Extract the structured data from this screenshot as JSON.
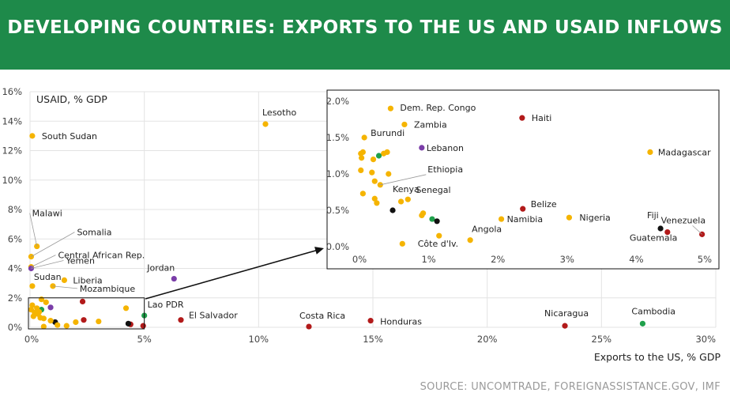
{
  "header": {
    "title": "DEVELOPING COUNTRIES: EXPORTS TO THE US AND USAID INFLOWS",
    "background": "#1e8a4a"
  },
  "source": "SOURCE: UNCOMTRADE, FOREIGNASSISTANCE.GOV, IMF",
  "colors": {
    "yellow": "#f5b400",
    "red": "#b21a1a",
    "green": "#1fa04b",
    "purple": "#7a3da8",
    "black": "#111111",
    "grid": "#e3e3e3",
    "axis_text": "#444444"
  },
  "chart_data": [
    {
      "type": "scatter",
      "xlabel": "Exports to the US, % GDP",
      "ylabel": "USAID, % GDP",
      "xlim": [
        0,
        30
      ],
      "ylim": [
        0,
        16
      ],
      "xticks": [
        0,
        5,
        10,
        15,
        20,
        25,
        30
      ],
      "yticks": [
        0,
        2,
        4,
        6,
        8,
        10,
        12,
        14,
        16
      ],
      "tick_format": "percent",
      "grid": true,
      "points": [
        {
          "label": "South Sudan",
          "x": 0.1,
          "y": 13.0,
          "color": "yellow"
        },
        {
          "label": "Lesotho",
          "x": 10.3,
          "y": 13.8,
          "color": "yellow"
        },
        {
          "label": "Malawi",
          "x": 0.3,
          "y": 5.5,
          "color": "yellow"
        },
        {
          "label": "Somalia",
          "x": 0.05,
          "y": 4.8,
          "color": "yellow"
        },
        {
          "label": "Central African Rep.",
          "x": 0.05,
          "y": 4.1,
          "color": "yellow"
        },
        {
          "label": "Yemen",
          "x": 0.05,
          "y": 4.0,
          "color": "purple"
        },
        {
          "label": "Sudan",
          "x": 0.1,
          "y": 2.8,
          "color": "yellow"
        },
        {
          "label": "Liberia",
          "x": 1.5,
          "y": 3.2,
          "color": "yellow"
        },
        {
          "label": "Mozambique",
          "x": 1.0,
          "y": 2.8,
          "color": "yellow"
        },
        {
          "label": "Jordan",
          "x": 6.3,
          "y": 3.3,
          "color": "purple"
        },
        {
          "label": "Lao PDR",
          "x": 5.0,
          "y": 0.8,
          "color": "green"
        },
        {
          "label": "El Salvador",
          "x": 6.6,
          "y": 0.5,
          "color": "red"
        },
        {
          "label": "Costa Rica",
          "x": 12.2,
          "y": 0.05,
          "color": "red"
        },
        {
          "label": "Honduras",
          "x": 14.9,
          "y": 0.45,
          "color": "red"
        },
        {
          "label": "Nicaragua",
          "x": 23.4,
          "y": 0.1,
          "color": "red"
        },
        {
          "label": "Cambodia",
          "x": 26.8,
          "y": 0.25,
          "color": "green"
        },
        {
          "label": "",
          "x": 2.3,
          "y": 1.75,
          "color": "red"
        },
        {
          "label": "",
          "x": 2.35,
          "y": 0.5,
          "color": "red"
        },
        {
          "label": "",
          "x": 4.95,
          "y": 0.1,
          "color": "red"
        },
        {
          "label": "",
          "x": 4.4,
          "y": 0.2,
          "color": "red"
        },
        {
          "label": "",
          "x": 4.3,
          "y": 0.25,
          "color": "black"
        },
        {
          "label": "",
          "x": 1.1,
          "y": 0.35,
          "color": "black"
        },
        {
          "label": "",
          "x": 0.9,
          "y": 1.35,
          "color": "purple"
        },
        {
          "label": "",
          "x": 0.5,
          "y": 1.2,
          "color": "green"
        },
        {
          "label": "",
          "x": 4.2,
          "y": 1.3,
          "color": "yellow"
        },
        {
          "label": "",
          "x": 3.0,
          "y": 0.4,
          "color": "yellow"
        },
        {
          "label": "",
          "x": 2.0,
          "y": 0.35,
          "color": "yellow"
        },
        {
          "label": "",
          "x": 1.6,
          "y": 0.1,
          "color": "yellow"
        },
        {
          "label": "",
          "x": 1.2,
          "y": 0.15,
          "color": "yellow"
        },
        {
          "label": "",
          "x": 0.6,
          "y": 0.05,
          "color": "yellow"
        },
        {
          "label": "",
          "x": 0.5,
          "y": 1.9,
          "color": "yellow"
        },
        {
          "label": "",
          "x": 0.7,
          "y": 1.7,
          "color": "yellow"
        },
        {
          "label": "",
          "x": 0.1,
          "y": 1.5,
          "color": "yellow"
        },
        {
          "label": "",
          "x": 0.3,
          "y": 1.3,
          "color": "yellow"
        },
        {
          "label": "",
          "x": 0.05,
          "y": 1.2,
          "color": "yellow"
        },
        {
          "label": "",
          "x": 0.2,
          "y": 1.0,
          "color": "yellow"
        },
        {
          "label": "",
          "x": 0.35,
          "y": 0.9,
          "color": "yellow"
        },
        {
          "label": "",
          "x": 0.15,
          "y": 0.75,
          "color": "yellow"
        },
        {
          "label": "",
          "x": 0.45,
          "y": 0.65,
          "color": "yellow"
        },
        {
          "label": "",
          "x": 0.6,
          "y": 0.6,
          "color": "yellow"
        },
        {
          "label": "",
          "x": 0.9,
          "y": 0.45,
          "color": "yellow"
        },
        {
          "label": "",
          "x": 0.4,
          "y": 1.05,
          "color": "yellow"
        }
      ],
      "highlight_box": {
        "xlim": [
          0,
          5
        ],
        "ylim": [
          0,
          2
        ]
      }
    },
    {
      "type": "scatter",
      "inset": true,
      "xlim": [
        0,
        5
      ],
      "ylim": [
        0,
        2
      ],
      "xticks": [
        0,
        1,
        2,
        3,
        4,
        5
      ],
      "yticks": [
        0.0,
        0.5,
        1.0,
        1.5,
        2.0
      ],
      "tick_format": "percent1",
      "grid": false,
      "points": [
        {
          "label": "Dem. Rep. Congo",
          "x": 0.45,
          "y": 1.9,
          "color": "yellow"
        },
        {
          "label": "Zambia",
          "x": 0.65,
          "y": 1.68,
          "color": "yellow"
        },
        {
          "label": "Burundi",
          "x": 0.07,
          "y": 1.5,
          "color": "yellow"
        },
        {
          "label": "Haiti",
          "x": 2.35,
          "y": 1.77,
          "color": "red"
        },
        {
          "label": "Lebanon",
          "x": 0.9,
          "y": 1.36,
          "color": "purple"
        },
        {
          "label": "Madagascar",
          "x": 4.2,
          "y": 1.3,
          "color": "yellow"
        },
        {
          "label": "Ethiopia",
          "x": 0.3,
          "y": 0.85,
          "color": "yellow"
        },
        {
          "label": "Kenya",
          "x": 0.48,
          "y": 0.5,
          "color": "black"
        },
        {
          "label": "Senegal",
          "x": 0.7,
          "y": 0.65,
          "color": "yellow"
        },
        {
          "label": "Belize",
          "x": 2.36,
          "y": 0.52,
          "color": "red"
        },
        {
          "label": "Namibia",
          "x": 2.05,
          "y": 0.38,
          "color": "yellow"
        },
        {
          "label": "Nigeria",
          "x": 3.03,
          "y": 0.4,
          "color": "yellow"
        },
        {
          "label": "Fiji",
          "x": 4.35,
          "y": 0.25,
          "color": "black"
        },
        {
          "label": "Venezuela",
          "x": 4.95,
          "y": 0.17,
          "color": "red"
        },
        {
          "label": "Guatemala",
          "x": 4.45,
          "y": 0.2,
          "color": "red"
        },
        {
          "label": "Angola",
          "x": 1.6,
          "y": 0.09,
          "color": "yellow"
        },
        {
          "label": "Côte d'Iv.",
          "x": 1.15,
          "y": 0.15,
          "color": "yellow"
        },
        {
          "label": "",
          "x": 0.35,
          "y": 1.28,
          "color": "yellow"
        },
        {
          "label": "",
          "x": 0.28,
          "y": 1.25,
          "color": "green"
        },
        {
          "label": "",
          "x": 0.4,
          "y": 1.3,
          "color": "yellow"
        },
        {
          "label": "",
          "x": 0.2,
          "y": 1.2,
          "color": "yellow"
        },
        {
          "label": "",
          "x": 0.02,
          "y": 1.28,
          "color": "yellow"
        },
        {
          "label": "",
          "x": 0.03,
          "y": 1.22,
          "color": "yellow"
        },
        {
          "label": "",
          "x": 0.05,
          "y": 1.3,
          "color": "yellow"
        },
        {
          "label": "",
          "x": 0.02,
          "y": 1.05,
          "color": "yellow"
        },
        {
          "label": "",
          "x": 0.18,
          "y": 1.02,
          "color": "yellow"
        },
        {
          "label": "",
          "x": 0.42,
          "y": 1.0,
          "color": "yellow"
        },
        {
          "label": "",
          "x": 0.22,
          "y": 0.9,
          "color": "yellow"
        },
        {
          "label": "",
          "x": 0.05,
          "y": 0.73,
          "color": "yellow"
        },
        {
          "label": "",
          "x": 0.22,
          "y": 0.66,
          "color": "yellow"
        },
        {
          "label": "",
          "x": 0.25,
          "y": 0.6,
          "color": "yellow"
        },
        {
          "label": "",
          "x": 0.6,
          "y": 0.62,
          "color": "yellow"
        },
        {
          "label": "",
          "x": 0.9,
          "y": 0.43,
          "color": "yellow"
        },
        {
          "label": "",
          "x": 0.92,
          "y": 0.46,
          "color": "yellow"
        },
        {
          "label": "",
          "x": 1.05,
          "y": 0.38,
          "color": "green"
        },
        {
          "label": "",
          "x": 1.12,
          "y": 0.35,
          "color": "black"
        },
        {
          "label": "",
          "x": 0.62,
          "y": 0.04,
          "color": "yellow"
        }
      ]
    }
  ]
}
